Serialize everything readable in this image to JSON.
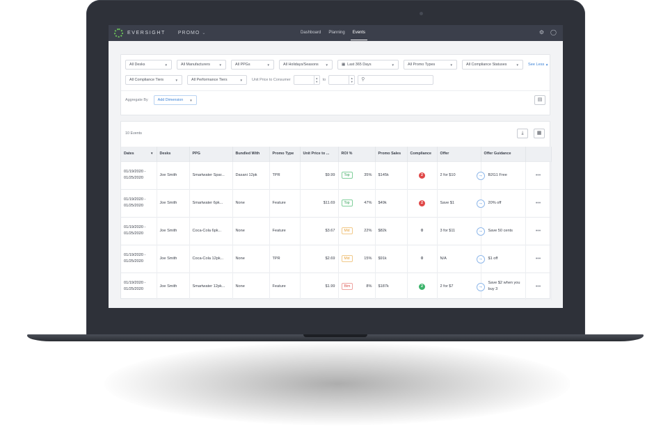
{
  "nav": {
    "brand": "EVERSIGHT",
    "module": "PROMO",
    "links": [
      {
        "label": "Dashboard",
        "active": false
      },
      {
        "label": "Planning",
        "active": false
      },
      {
        "label": "Events",
        "active": true
      }
    ],
    "icons": [
      "gear-icon",
      "user-icon"
    ]
  },
  "filters": {
    "row1": [
      "All Desks",
      "All Manufacturers",
      "All PPGs",
      "All Holidays/Seasons",
      "Last 365 Days",
      "All Promo Types",
      "All Compliance Statuses"
    ],
    "see_less": "See Less",
    "row2": [
      "All Compliance Tiers",
      "All Performance Tiers"
    ],
    "unit_price_label": "Unit Price to Consumer",
    "to_label": "to",
    "aggregate_label": "Aggregate By",
    "add_dimension": "Add Dimension"
  },
  "events": {
    "count": "10 Events",
    "columns": [
      "Dates",
      "Desks",
      "PPG",
      "Bundled With",
      "Promo Type",
      "Unit Price to ...",
      "ROI %",
      "Promo Sales",
      "Compliance",
      "Offer",
      "Offer Guidance"
    ],
    "rows": [
      {
        "dates": "01/19/2020 - 01/25/2020",
        "desk": "Joe Smith",
        "ppg": "Smartwater Spar...",
        "bundled": "Dasani 12pk",
        "type": "TPR",
        "price": "$9.99",
        "tier": "Top",
        "roi": "35%",
        "sales": "$145k",
        "compliance": "2",
        "status": "red",
        "offer": "2 for $10",
        "guidance": "B2G1 Free"
      },
      {
        "dates": "01/19/2020 - 01/25/2020",
        "desk": "Joe Smith",
        "ppg": "Smartwater 6pk...",
        "bundled": "None",
        "type": "Feature",
        "price": "$11.69",
        "tier": "Top",
        "roi": "47%",
        "sales": "$49k",
        "compliance": "2",
        "status": "red",
        "offer": "Save $1",
        "guidance": "20% off"
      },
      {
        "dates": "01/19/2020 - 01/25/2020",
        "desk": "Joe Smith",
        "ppg": "Coca-Cola 6pk...",
        "bundled": "None",
        "type": "Feature",
        "price": "$3.67",
        "tier": "Mid",
        "roi": "22%",
        "sales": "$82k",
        "compliance": "0",
        "status": "none",
        "offer": "3 for $11",
        "guidance": "Save 50 cents"
      },
      {
        "dates": "01/19/2020 - 01/25/2020",
        "desk": "Joe Smith",
        "ppg": "Coca-Cola 12pk...",
        "bundled": "None",
        "type": "TPR",
        "price": "$2.69",
        "tier": "Mid",
        "roi": "15%",
        "sales": "$91k",
        "compliance": "0",
        "status": "none",
        "offer": "N/A",
        "guidance": "$1 off"
      },
      {
        "dates": "01/19/2020 - 01/25/2020",
        "desk": "Joe Smith",
        "ppg": "Smartwater 12pk...",
        "bundled": "None",
        "type": "Feature",
        "price": "$1.99",
        "tier": "Btm",
        "roi": "8%",
        "sales": "$187k",
        "compliance": "2",
        "status": "green",
        "offer": "2 for $7",
        "guidance": "Save $2 when you buy 3"
      }
    ]
  }
}
